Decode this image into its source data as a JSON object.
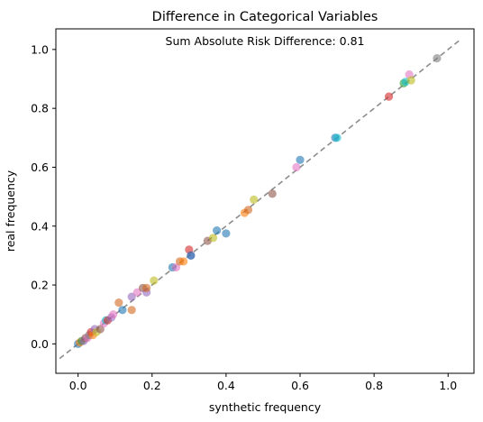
{
  "chart_data": {
    "type": "scatter",
    "title": "Difference in Categorical Variables",
    "xlabel": "synthetic frequency",
    "ylabel": "real frequency",
    "annotation": "Sum Absolute Risk Difference: 0.81",
    "xlim": [
      -0.06,
      1.07
    ],
    "ylim": [
      -0.1,
      1.07
    ],
    "xticks": [
      "0.0",
      "0.2",
      "0.4",
      "0.6",
      "0.8",
      "1.0"
    ],
    "yticks": [
      "0.0",
      "0.2",
      "0.4",
      "0.6",
      "0.8",
      "1.0"
    ],
    "grid": false,
    "legend": false,
    "reference_line": {
      "style": "dashed",
      "color": "#8c8c8c",
      "from": [
        -0.05,
        -0.05
      ],
      "to": [
        1.03,
        1.03
      ]
    },
    "points": [
      {
        "x": 0.0,
        "y": 0.0,
        "color": "#1f77b4"
      },
      {
        "x": 0.005,
        "y": 0.005,
        "color": "#ff7f0e"
      },
      {
        "x": 0.01,
        "y": 0.01,
        "color": "#2ca02c"
      },
      {
        "x": 0.015,
        "y": 0.01,
        "color": "#9467bd"
      },
      {
        "x": 0.02,
        "y": 0.02,
        "color": "#8c564b"
      },
      {
        "x": 0.025,
        "y": 0.02,
        "color": "#e377c2"
      },
      {
        "x": 0.03,
        "y": 0.03,
        "color": "#7f7f7f"
      },
      {
        "x": 0.035,
        "y": 0.04,
        "color": "#d62728"
      },
      {
        "x": 0.04,
        "y": 0.03,
        "color": "#ff7f0e"
      },
      {
        "x": 0.045,
        "y": 0.05,
        "color": "#9467bd"
      },
      {
        "x": 0.05,
        "y": 0.04,
        "color": "#bcbd22"
      },
      {
        "x": 0.06,
        "y": 0.05,
        "color": "#8c564b"
      },
      {
        "x": 0.07,
        "y": 0.07,
        "color": "#e377c2"
      },
      {
        "x": 0.075,
        "y": 0.08,
        "color": "#17becf"
      },
      {
        "x": 0.08,
        "y": 0.08,
        "color": "#d62728"
      },
      {
        "x": 0.09,
        "y": 0.09,
        "color": "#9467bd"
      },
      {
        "x": 0.095,
        "y": 0.1,
        "color": "#e377c2"
      },
      {
        "x": 0.11,
        "y": 0.14,
        "color": "#d2691e"
      },
      {
        "x": 0.12,
        "y": 0.115,
        "color": "#1f77b4"
      },
      {
        "x": 0.145,
        "y": 0.115,
        "color": "#d2691e"
      },
      {
        "x": 0.145,
        "y": 0.16,
        "color": "#9467bd"
      },
      {
        "x": 0.16,
        "y": 0.175,
        "color": "#e377c2"
      },
      {
        "x": 0.175,
        "y": 0.19,
        "color": "#8c564b"
      },
      {
        "x": 0.185,
        "y": 0.175,
        "color": "#9467bd"
      },
      {
        "x": 0.185,
        "y": 0.19,
        "color": "#d2691e"
      },
      {
        "x": 0.205,
        "y": 0.215,
        "color": "#bcbd22"
      },
      {
        "x": 0.255,
        "y": 0.26,
        "color": "#1f77b4"
      },
      {
        "x": 0.265,
        "y": 0.26,
        "color": "#e377c2"
      },
      {
        "x": 0.275,
        "y": 0.28,
        "color": "#d2691e"
      },
      {
        "x": 0.285,
        "y": 0.28,
        "color": "#ff7f0e"
      },
      {
        "x": 0.305,
        "y": 0.3,
        "color": "#9467bd"
      },
      {
        "x": 0.3,
        "y": 0.32,
        "color": "#d62728"
      },
      {
        "x": 0.305,
        "y": 0.3,
        "color": "#1f77b4"
      },
      {
        "x": 0.35,
        "y": 0.35,
        "color": "#8c564b"
      },
      {
        "x": 0.365,
        "y": 0.36,
        "color": "#bcbd22"
      },
      {
        "x": 0.375,
        "y": 0.385,
        "color": "#1f77b4"
      },
      {
        "x": 0.4,
        "y": 0.375,
        "color": "#1f77b4"
      },
      {
        "x": 0.45,
        "y": 0.445,
        "color": "#ff7f0e"
      },
      {
        "x": 0.46,
        "y": 0.455,
        "color": "#d2691e"
      },
      {
        "x": 0.475,
        "y": 0.49,
        "color": "#bcbd22"
      },
      {
        "x": 0.525,
        "y": 0.51,
        "color": "#8c564b"
      },
      {
        "x": 0.59,
        "y": 0.6,
        "color": "#e377c2"
      },
      {
        "x": 0.6,
        "y": 0.625,
        "color": "#1f77b4"
      },
      {
        "x": 0.695,
        "y": 0.7,
        "color": "#1f77b4"
      },
      {
        "x": 0.7,
        "y": 0.7,
        "color": "#17becf"
      },
      {
        "x": 0.84,
        "y": 0.84,
        "color": "#d62728"
      },
      {
        "x": 0.88,
        "y": 0.885,
        "color": "#2ca02c"
      },
      {
        "x": 0.885,
        "y": 0.89,
        "color": "#17becf"
      },
      {
        "x": 0.895,
        "y": 0.915,
        "color": "#e377c2"
      },
      {
        "x": 0.9,
        "y": 0.895,
        "color": "#bcbd22"
      },
      {
        "x": 0.97,
        "y": 0.97,
        "color": "#7f7f7f"
      }
    ]
  }
}
